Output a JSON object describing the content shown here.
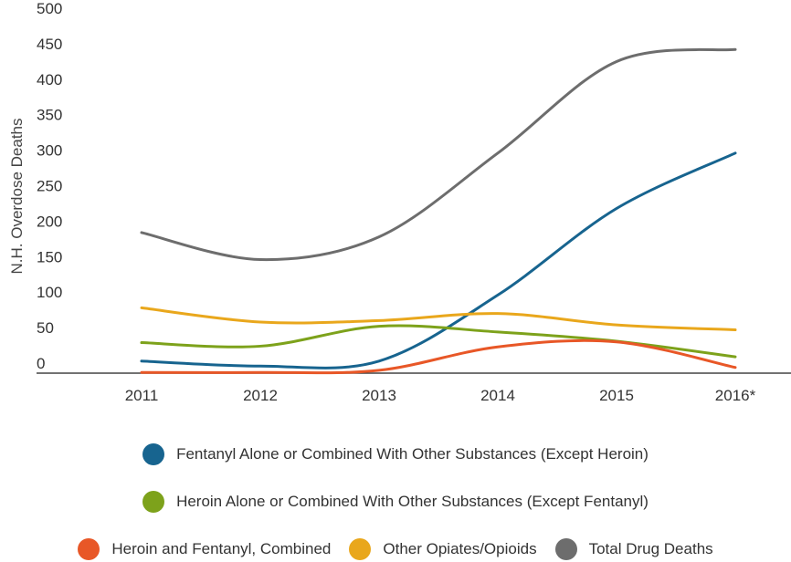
{
  "chart_data": {
    "type": "line",
    "ylabel": "N.H. Overdose Deaths",
    "xlabel": "",
    "categories": [
      "2011",
      "2012",
      "2013",
      "2014",
      "2015",
      "2016*"
    ],
    "ylim": [
      0,
      500
    ],
    "yticks": [
      0,
      50,
      100,
      150,
      200,
      250,
      300,
      350,
      400,
      450,
      500
    ],
    "grid": false,
    "legend_position": "bottom",
    "series": [
      {
        "name": "Fentanyl Alone or Combined With Other Substances (Except Heroin)",
        "color": "#17648f",
        "values": [
          17,
          10,
          17,
          110,
          232,
          310
        ]
      },
      {
        "name": "Heroin Alone or Combined With Other Substances (Except Fentanyl)",
        "color": "#7da21b",
        "values": [
          43,
          38,
          66,
          58,
          45,
          23
        ]
      },
      {
        "name": "Heroin and Fentanyl, Combined",
        "color": "#e85727",
        "values": [
          1,
          1,
          4,
          37,
          44,
          8
        ]
      },
      {
        "name": "Other Opiates/Opioids",
        "color": "#e9a71c",
        "values": [
          92,
          72,
          74,
          84,
          68,
          61
        ]
      },
      {
        "name": "Total Drug Deaths",
        "color": "#6d6d6d",
        "values": [
          198,
          160,
          192,
          310,
          439,
          456
        ]
      }
    ]
  }
}
